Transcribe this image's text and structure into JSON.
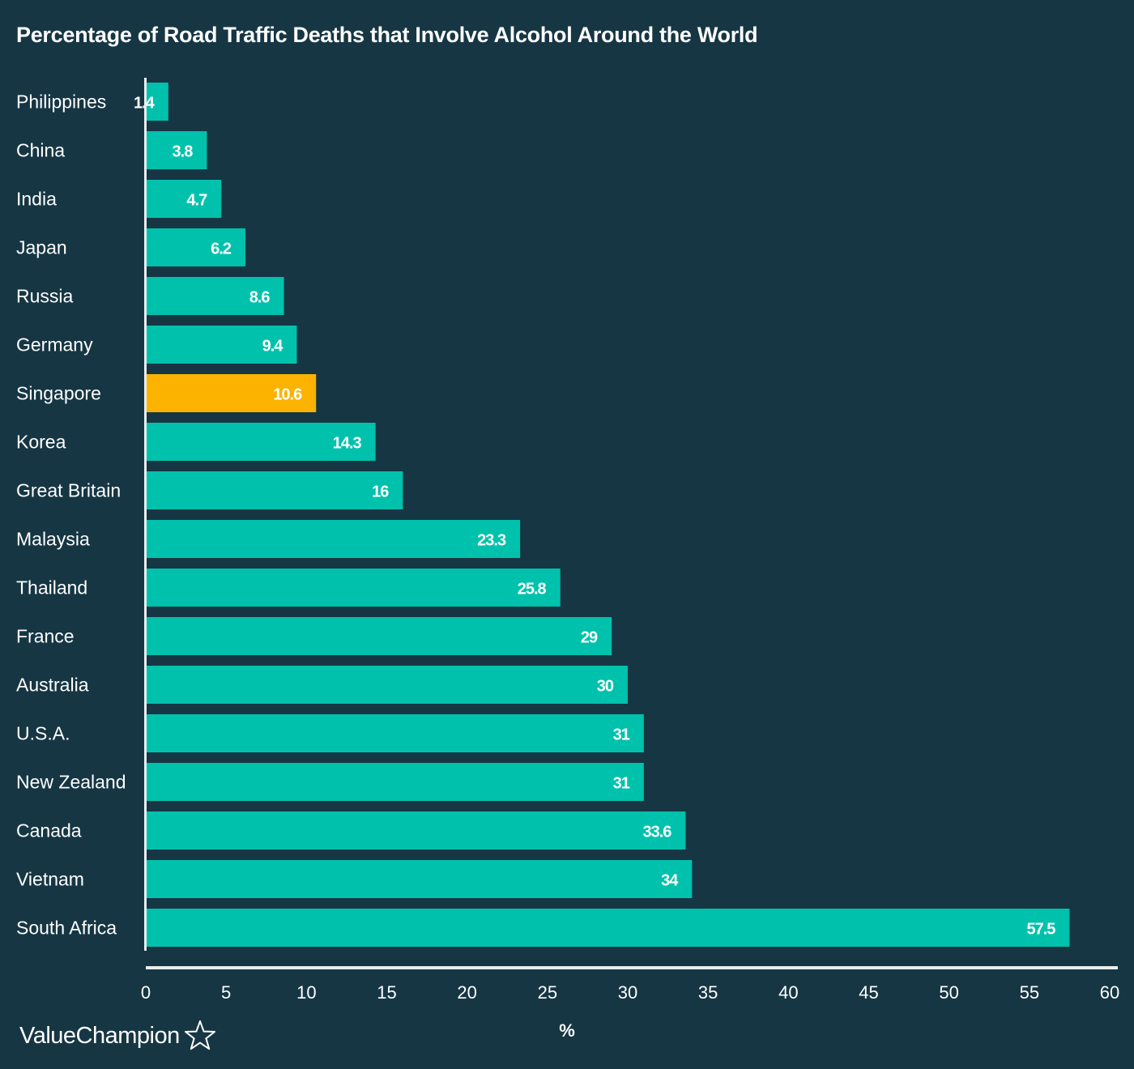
{
  "chart_data": {
    "type": "bar",
    "orientation": "horizontal",
    "title": "Percentage of Road Traffic Deaths that Involve Alcohol Around the World",
    "xlabel": "%",
    "ylabel": "",
    "xlim": [
      0,
      60
    ],
    "xticks": [
      "0",
      "5",
      "10",
      "15",
      "20",
      "25",
      "30",
      "35",
      "40",
      "45",
      "50",
      "55",
      "60"
    ],
    "categories": [
      "Philippines",
      "China",
      "India",
      "Japan",
      "Russia",
      "Germany",
      "Singapore",
      "Korea",
      "Great Britain",
      "Malaysia",
      "Thailand",
      "France",
      "Australia",
      "U.S.A.",
      "New Zealand",
      "Canada",
      "Vietnam",
      "South Africa"
    ],
    "values": [
      1.4,
      3.8,
      4.7,
      6.2,
      8.6,
      9.4,
      10.6,
      14.3,
      16,
      23.3,
      25.8,
      29,
      30,
      31,
      31,
      33.6,
      34,
      57.5
    ],
    "value_labels": [
      "1.4",
      "3.8",
      "4.7",
      "6.2",
      "8.6",
      "9.4",
      "10.6",
      "14.3",
      "16",
      "23.3",
      "25.8",
      "29",
      "30",
      "31",
      "31",
      "33.6",
      "34",
      "57.5"
    ],
    "highlight_category": "Singapore",
    "grid": false,
    "legend": "none",
    "colors": {
      "background": "#163644",
      "bar": "#00c2ac",
      "highlight": "#fbb300",
      "axis": "#e8eef0",
      "text": "#ffffff"
    }
  },
  "brand": {
    "name": "ValueChampion",
    "icon": "star-outline-icon"
  }
}
